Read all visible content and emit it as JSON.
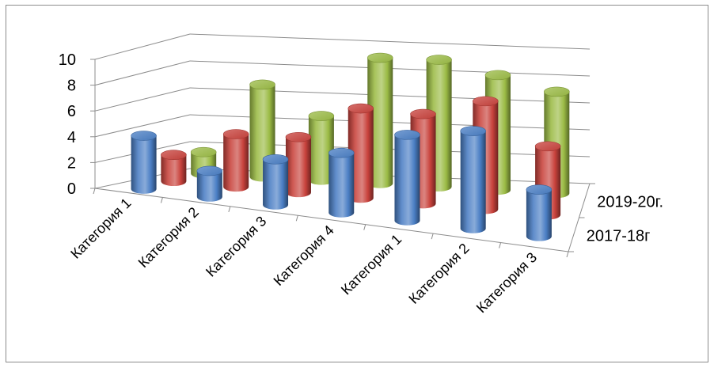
{
  "chart_data": {
    "type": "bar",
    "subtype": "3d-cylinder",
    "title": "",
    "categories": [
      "Категория 1",
      "Категория 2",
      "Категория 3",
      "Категория 4",
      "Категория 1",
      "Категория 2",
      "Категория 3"
    ],
    "depth_categories": [
      "2017-18г",
      "2019-20г."
    ],
    "series": [
      {
        "values": [
          4.1,
          2.0,
          3.5,
          4.6,
          6.6,
          7.5,
          3.6
        ],
        "color": "#4a7ec4"
      },
      {
        "values": [
          2.0,
          4.0,
          4.2,
          6.8,
          6.8,
          8.2,
          5.2
        ],
        "color": "#c8423c"
      },
      {
        "values": [
          1.6,
          6.9,
          4.8,
          9.4,
          9.5,
          8.6,
          7.6
        ],
        "color": "#9bbb45"
      }
    ],
    "ylim": [
      0,
      10
    ],
    "yticks": [
      0,
      2,
      4,
      6,
      8,
      10
    ],
    "grid": true,
    "legend": "none"
  }
}
